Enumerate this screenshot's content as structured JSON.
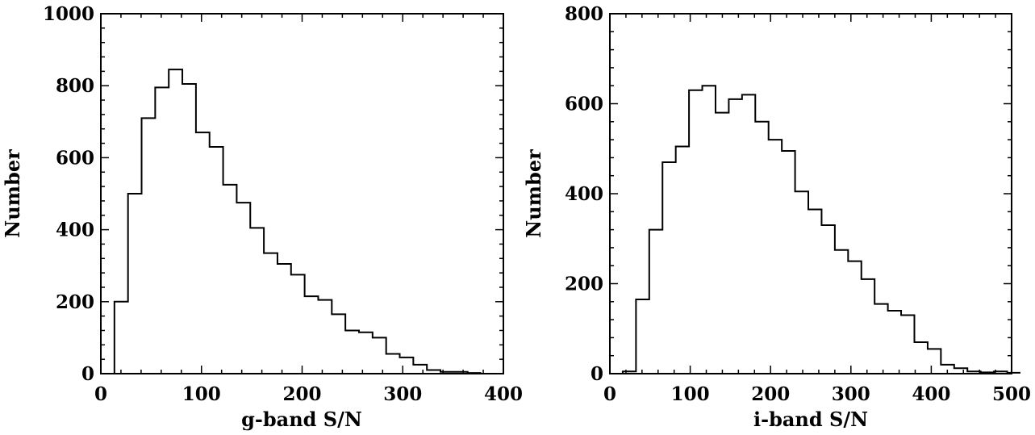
{
  "chart_data": [
    {
      "type": "bar",
      "style": "step-histogram",
      "xlabel": "g-band S/N",
      "ylabel": "Number",
      "xlim": [
        0,
        400
      ],
      "ylim": [
        0,
        1000
      ],
      "xticks": [
        0,
        100,
        200,
        300,
        400
      ],
      "yticks": [
        0,
        200,
        400,
        600,
        800,
        1000
      ],
      "bin_width": 13.5,
      "bin_start": 13.5,
      "values": [
        200,
        500,
        710,
        795,
        845,
        805,
        670,
        630,
        525,
        475,
        405,
        335,
        305,
        275,
        215,
        205,
        165,
        120,
        115,
        100,
        55,
        45,
        25,
        10,
        5,
        5,
        2
      ],
      "grid": false,
      "legend": "none"
    },
    {
      "type": "bar",
      "style": "step-histogram",
      "xlabel": "i-band S/N",
      "ylabel": "Number",
      "xlim": [
        0,
        500
      ],
      "ylim": [
        0,
        800
      ],
      "xticks": [
        0,
        100,
        200,
        300,
        400,
        500
      ],
      "yticks": [
        0,
        200,
        400,
        600,
        800
      ],
      "bin_width": 16.5,
      "bin_start": 16,
      "values": [
        5,
        165,
        320,
        470,
        505,
        630,
        640,
        580,
        610,
        620,
        560,
        520,
        495,
        405,
        365,
        330,
        275,
        250,
        210,
        155,
        140,
        130,
        70,
        55,
        20,
        12,
        5,
        3,
        5,
        2
      ],
      "grid": false,
      "legend": "none"
    }
  ]
}
